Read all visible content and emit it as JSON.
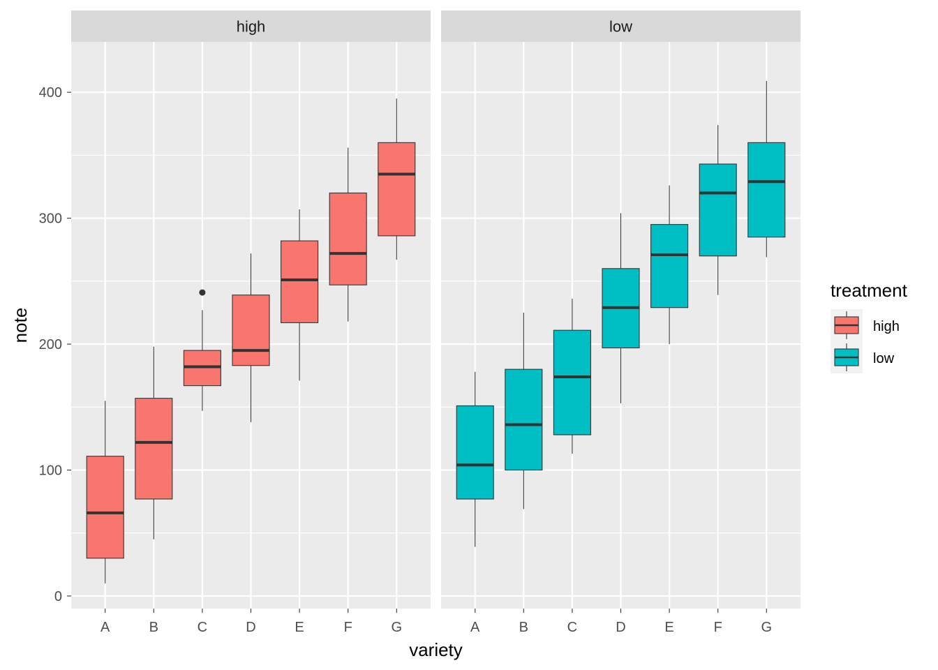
{
  "chart_data": {
    "type": "boxplot",
    "xlabel": "variety",
    "ylabel": "note",
    "ylim": [
      -10,
      440
    ],
    "yticks": [
      0,
      100,
      200,
      300,
      400
    ],
    "grid": true,
    "categories": [
      "A",
      "B",
      "C",
      "D",
      "E",
      "F",
      "G"
    ],
    "legend": {
      "title": "treatment",
      "position": "right",
      "entries": [
        {
          "label": "high",
          "color": "#F8766D"
        },
        {
          "label": "low",
          "color": "#00BFC4"
        }
      ]
    },
    "panels": [
      {
        "label": "high",
        "fill": "#F8766D",
        "boxes": [
          {
            "category": "A",
            "min": 10,
            "q1": 30,
            "median": 66,
            "q3": 111,
            "max": 155,
            "outliers": []
          },
          {
            "category": "B",
            "min": 45,
            "q1": 77,
            "median": 122,
            "q3": 157,
            "max": 198,
            "outliers": []
          },
          {
            "category": "C",
            "min": 147,
            "q1": 167,
            "median": 182,
            "q3": 195,
            "max": 227,
            "outliers": [
              241
            ]
          },
          {
            "category": "D",
            "min": 138,
            "q1": 183,
            "median": 195,
            "q3": 239,
            "max": 272,
            "outliers": []
          },
          {
            "category": "E",
            "min": 171,
            "q1": 217,
            "median": 251,
            "q3": 282,
            "max": 307,
            "outliers": []
          },
          {
            "category": "F",
            "min": 218,
            "q1": 247,
            "median": 272,
            "q3": 320,
            "max": 356,
            "outliers": []
          },
          {
            "category": "G",
            "min": 267,
            "q1": 286,
            "median": 335,
            "q3": 360,
            "max": 395,
            "outliers": []
          }
        ]
      },
      {
        "label": "low",
        "fill": "#00BFC4",
        "boxes": [
          {
            "category": "A",
            "min": 39,
            "q1": 77,
            "median": 104,
            "q3": 151,
            "max": 178,
            "outliers": []
          },
          {
            "category": "B",
            "min": 69,
            "q1": 100,
            "median": 136,
            "q3": 180,
            "max": 225,
            "outliers": []
          },
          {
            "category": "C",
            "min": 113,
            "q1": 128,
            "median": 174,
            "q3": 211,
            "max": 236,
            "outliers": []
          },
          {
            "category": "D",
            "min": 153,
            "q1": 197,
            "median": 229,
            "q3": 260,
            "max": 304,
            "outliers": []
          },
          {
            "category": "E",
            "min": 200,
            "q1": 229,
            "median": 271,
            "q3": 295,
            "max": 326,
            "outliers": []
          },
          {
            "category": "F",
            "min": 239,
            "q1": 270,
            "median": 320,
            "q3": 343,
            "max": 374,
            "outliers": []
          },
          {
            "category": "G",
            "min": 269,
            "q1": 285,
            "median": 329,
            "q3": 360,
            "max": 409,
            "outliers": []
          }
        ]
      }
    ]
  }
}
